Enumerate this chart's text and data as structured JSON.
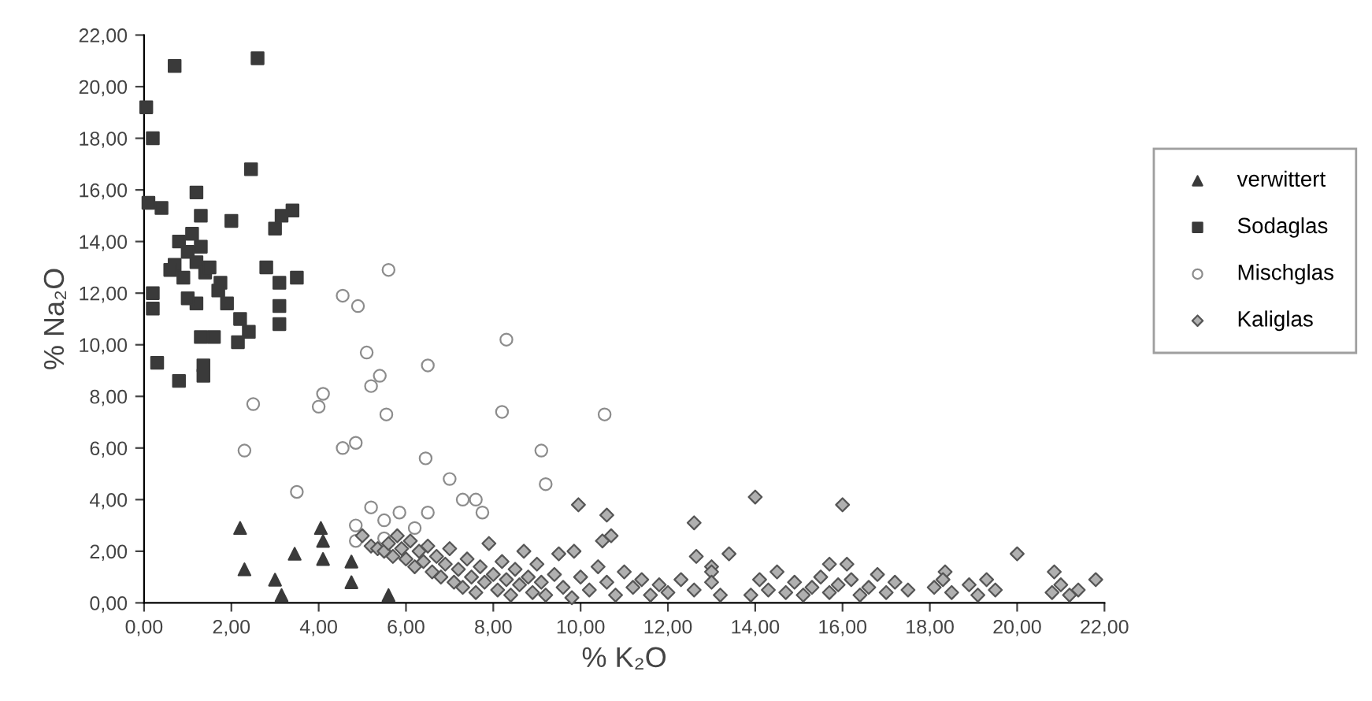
{
  "chart_data": {
    "type": "scatter",
    "xlabel": "% K₂O",
    "ylabel": "% Na₂O",
    "xlim": [
      0,
      22
    ],
    "ylim": [
      0,
      22
    ],
    "xticks": [
      {
        "value": 0,
        "label": "0,00"
      },
      {
        "value": 2,
        "label": "2,00"
      },
      {
        "value": 4,
        "label": "4,00"
      },
      {
        "value": 6,
        "label": "6,00"
      },
      {
        "value": 8,
        "label": "8,00"
      },
      {
        "value": 10,
        "label": "10,00"
      },
      {
        "value": 12,
        "label": "12,00"
      },
      {
        "value": 14,
        "label": "14,00"
      },
      {
        "value": 16,
        "label": "16,00"
      },
      {
        "value": 18,
        "label": "18,00"
      },
      {
        "value": 20,
        "label": "20,00"
      },
      {
        "value": 22,
        "label": "22,00"
      }
    ],
    "yticks": [
      {
        "value": 0,
        "label": "0,00"
      },
      {
        "value": 2,
        "label": "2,00"
      },
      {
        "value": 4,
        "label": "4,00"
      },
      {
        "value": 6,
        "label": "6,00"
      },
      {
        "value": 8,
        "label": "8,00"
      },
      {
        "value": 10,
        "label": "10,00"
      },
      {
        "value": 12,
        "label": "12,00"
      },
      {
        "value": 14,
        "label": "14,00"
      },
      {
        "value": 16,
        "label": "16,00"
      },
      {
        "value": 18,
        "label": "18,00"
      },
      {
        "value": 20,
        "label": "20,00"
      },
      {
        "value": 22,
        "label": "22,00"
      }
    ],
    "grid": false,
    "legend": "right",
    "series": [
      {
        "name": "verwittert",
        "color": "#3a3a3a",
        "marker": "triangle",
        "x": [
          2.2,
          2.3,
          3.0,
          3.15,
          3.45,
          4.05,
          4.1,
          4.1,
          4.75,
          4.75,
          5.6
        ],
        "values": [
          2.9,
          1.3,
          0.9,
          0.3,
          1.9,
          2.9,
          2.4,
          1.7,
          1.6,
          0.8,
          0.3
        ]
      },
      {
        "name": "Sodaglas",
        "color": "#3a3a3a",
        "marker": "square",
        "x": [
          0.7,
          2.6,
          0.05,
          0.2,
          2.45,
          1.2,
          3.4,
          3.15,
          3.0,
          2.0,
          1.3,
          0.1,
          0.4,
          0.8,
          1.0,
          1.2,
          1.4,
          0.9,
          1.1,
          1.3,
          0.7,
          1.5,
          2.8,
          3.1,
          3.5,
          1.75,
          3.1,
          3.1,
          1.2,
          1.9,
          2.2,
          2.4,
          1.3,
          1.6,
          2.15,
          0.3,
          1.36,
          1.36,
          0.8,
          0.2,
          0.2,
          0.6,
          1.0,
          1.7
        ],
        "values": [
          20.8,
          21.1,
          19.2,
          18.0,
          16.8,
          15.9,
          15.2,
          15.0,
          14.5,
          14.8,
          15.0,
          15.5,
          15.3,
          14.0,
          13.6,
          13.2,
          12.8,
          12.6,
          14.3,
          13.8,
          13.1,
          13.0,
          13.0,
          12.4,
          12.6,
          12.4,
          11.5,
          10.8,
          11.6,
          11.6,
          11.0,
          10.5,
          10.3,
          10.3,
          10.1,
          9.3,
          9.2,
          8.8,
          8.6,
          12.0,
          11.4,
          12.9,
          11.8,
          12.1
        ]
      },
      {
        "name": "Mischglas",
        "color": "#8c8c8c",
        "marker": "circle",
        "x": [
          5.6,
          4.55,
          4.9,
          8.3,
          5.1,
          6.5,
          5.4,
          5.2,
          4.1,
          4.0,
          2.5,
          5.55,
          8.2,
          10.55,
          2.3,
          4.55,
          4.85,
          6.45,
          7.0,
          9.1,
          9.2,
          3.5,
          7.3,
          7.6,
          7.75,
          5.2,
          4.85,
          5.5,
          5.85,
          6.2,
          6.5,
          4.85,
          5.5
        ],
        "values": [
          12.9,
          11.9,
          11.5,
          10.2,
          9.7,
          9.2,
          8.8,
          8.4,
          8.1,
          7.6,
          7.7,
          7.3,
          7.4,
          7.3,
          5.9,
          6.0,
          6.2,
          5.6,
          4.8,
          5.9,
          4.6,
          4.3,
          4.0,
          4.0,
          3.5,
          3.7,
          3.0,
          3.2,
          3.5,
          2.9,
          3.5,
          2.4,
          2.5
        ]
      },
      {
        "name": "Kaliglas",
        "color": "#b0b0b0",
        "marker": "diamond",
        "x": [
          9.95,
          10.6,
          10.7,
          10.5,
          14.0,
          16.0,
          12.6,
          12.65,
          13.4,
          13.0,
          13.0,
          20.0,
          21.8,
          16.1,
          15.7,
          19.3,
          18.35,
          20.85,
          9.5,
          9.85,
          5.0,
          5.2,
          5.35,
          5.5,
          5.6,
          5.7,
          5.8,
          5.9,
          6.0,
          6.1,
          6.2,
          6.3,
          6.4,
          6.5,
          6.6,
          6.7,
          6.8,
          6.9,
          7.0,
          7.1,
          7.2,
          7.3,
          7.4,
          7.5,
          7.6,
          7.7,
          7.8,
          7.9,
          8.0,
          8.1,
          8.2,
          8.3,
          8.4,
          8.5,
          8.6,
          8.7,
          8.8,
          8.9,
          9.0,
          9.1,
          9.2,
          9.4,
          9.6,
          9.8,
          10.0,
          10.2,
          10.4,
          10.6,
          10.8,
          11.0,
          11.2,
          11.4,
          11.6,
          11.8,
          12.0,
          12.3,
          12.6,
          13.0,
          13.2,
          13.9,
          14.1,
          14.3,
          14.5,
          14.7,
          14.9,
          15.1,
          15.3,
          15.5,
          15.7,
          15.9,
          16.2,
          16.4,
          16.6,
          16.8,
          17.0,
          17.2,
          17.5,
          18.1,
          18.3,
          18.5,
          18.9,
          19.1,
          19.5,
          20.8,
          21.0,
          21.2,
          21.4
        ],
        "values": [
          3.8,
          3.4,
          2.6,
          2.4,
          4.1,
          3.8,
          3.1,
          1.8,
          1.9,
          1.4,
          1.2,
          1.9,
          0.9,
          1.5,
          1.5,
          0.9,
          1.2,
          1.2,
          1.9,
          2.0,
          2.6,
          2.2,
          2.1,
          2.0,
          2.3,
          1.8,
          2.6,
          2.1,
          1.7,
          2.4,
          1.4,
          2.0,
          1.6,
          2.2,
          1.2,
          1.8,
          1.0,
          1.5,
          2.1,
          0.8,
          1.3,
          0.6,
          1.7,
          1.0,
          0.4,
          1.4,
          0.8,
          2.3,
          1.1,
          0.5,
          1.6,
          0.9,
          0.3,
          1.3,
          0.7,
          2.0,
          1.0,
          0.4,
          1.5,
          0.8,
          0.3,
          1.1,
          0.6,
          0.2,
          1.0,
          0.5,
          1.4,
          0.8,
          0.3,
          1.2,
          0.6,
          0.9,
          0.3,
          0.7,
          0.4,
          0.9,
          0.5,
          0.8,
          0.3,
          0.3,
          0.9,
          0.5,
          1.2,
          0.4,
          0.8,
          0.3,
          0.6,
          1.0,
          0.4,
          0.7,
          0.9,
          0.3,
          0.6,
          1.1,
          0.4,
          0.8,
          0.5,
          0.6,
          0.9,
          0.4,
          0.7,
          0.3,
          0.5,
          0.4,
          0.7,
          0.3,
          0.5
        ]
      }
    ]
  }
}
